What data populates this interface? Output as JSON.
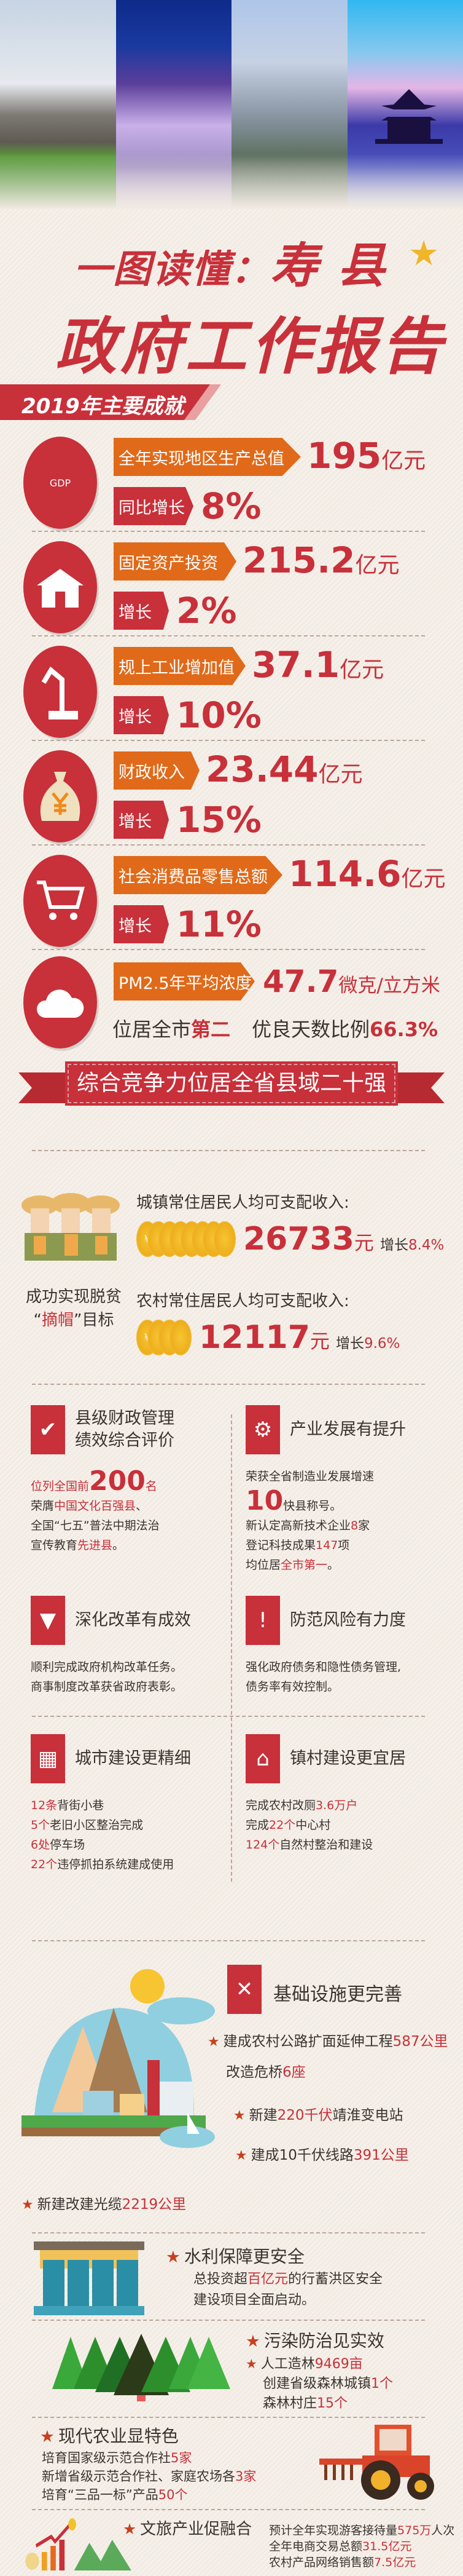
{
  "header": {
    "title_prefix": "一图读懂：",
    "title_place": "寿 县",
    "title_main": "政府工作报告"
  },
  "section1": {
    "ribbon": "2019年主要成就",
    "stats": [
      {
        "icon": "gdp-chart-icon",
        "icon_text": "GDP",
        "label": "全年实现地区生产总值",
        "value": "195",
        "unit": "亿元",
        "growth_label": "同比增长",
        "growth": "8%"
      },
      {
        "icon": "house-icon",
        "label": "固定资产投资",
        "value": "215.2",
        "unit": "亿元",
        "growth_label": "增长",
        "growth": "2%"
      },
      {
        "icon": "robot-arm-icon",
        "label": "规上工业增加值",
        "value": "37.1",
        "unit": "亿元",
        "growth_label": "增长",
        "growth": "10%"
      },
      {
        "icon": "money-bag-icon",
        "label": "财政收入",
        "value": "23.44",
        "unit": "亿元",
        "growth_label": "增长",
        "growth": "15%"
      },
      {
        "icon": "shopping-cart-icon",
        "label": "社会消费品零售总额",
        "value": "114.6",
        "unit": "亿元",
        "growth_label": "增长",
        "growth": "11%"
      }
    ],
    "pm25": {
      "label": "PM2.5年平均浓度",
      "value": "47.7",
      "unit": "微克/立方米",
      "rank_prefix": "位居全市",
      "rank": "第二",
      "good_days_label": "优良天数比例",
      "good_days": "66.3%"
    }
  },
  "section2": {
    "ribbon": "综合竞争力位居全省县域二十强",
    "poverty": [
      {
        "t": "成功实现脱贫"
      },
      {
        "t": "\n“"
      },
      {
        "t": "摘帽",
        "hl": true
      },
      {
        "t": "”目标"
      }
    ],
    "urban": {
      "label": "城镇常住居民人均可支配收入:",
      "value": "26733",
      "unit": "元",
      "growth_label": "增长",
      "growth": "8.4%"
    },
    "rural": {
      "label": "农村常住居民人均可支配收入:",
      "value": "12117",
      "unit": "元",
      "growth_label": "增长",
      "growth": "9.6%"
    },
    "coin_symbol": "¥"
  },
  "cards": [
    {
      "icon": "money-bag-check-icon",
      "title": "县级财政管理\n绩效综合评价",
      "lines": [
        [
          {
            "t": "位列全国前",
            "hl": true
          },
          {
            "t": "200",
            "hl": true,
            "big": true
          },
          {
            "t": "名",
            "hl": true
          }
        ],
        [
          {
            "t": "荣膺"
          },
          {
            "t": "中国文化百强县",
            "hl": true
          },
          {
            "t": "、"
          }
        ],
        [
          {
            "t": "全国“七五”普法中期法治"
          }
        ],
        [
          {
            "t": "宣传教育"
          },
          {
            "t": "先进县",
            "hl": true
          },
          {
            "t": "。"
          }
        ]
      ]
    },
    {
      "icon": "gear-icon",
      "title": "产业发展有提升",
      "lines": [
        [
          {
            "t": "荣获全省制造业发展增速"
          }
        ],
        [
          {
            "t": "10",
            "hl": true,
            "big": true
          },
          {
            "t": "快县称号。"
          }
        ],
        [
          {
            "t": "新认定高新技术企业"
          },
          {
            "t": "8",
            "hl": true
          },
          {
            "t": "家"
          }
        ],
        [
          {
            "t": "登记科技成果"
          },
          {
            "t": "147",
            "hl": true
          },
          {
            "t": "项"
          }
        ],
        [
          {
            "t": "均位居"
          },
          {
            "t": "全市第一",
            "hl": true
          },
          {
            "t": "。"
          }
        ]
      ]
    },
    {
      "icon": "stamp-icon",
      "title": "深化改革有成效",
      "lines": [
        [
          {
            "t": "顺利完成政府机构改革任务。"
          }
        ],
        [
          {
            "t": "商事制度改革获省政府表彰。"
          }
        ]
      ]
    },
    {
      "icon": "warning-icon",
      "title": "防范风险有力度",
      "lines": [
        [
          {
            "t": "强化政府债务和隐性债务管理,"
          }
        ],
        [
          {
            "t": "债务率有效控制。"
          }
        ]
      ]
    },
    {
      "icon": "buildings-icon",
      "title": "城市建设更精细",
      "lines": [
        [
          {
            "t": "12条",
            "hl": true
          },
          {
            "t": "背街小巷"
          }
        ],
        [
          {
            "t": "5个",
            "hl": true
          },
          {
            "t": "老旧小区整治完成"
          }
        ],
        [
          {
            "t": "6处",
            "hl": true
          },
          {
            "t": "停车场"
          }
        ],
        [
          {
            "t": "22个",
            "hl": true
          },
          {
            "t": "违停抓拍系统建成使用"
          }
        ]
      ]
    },
    {
      "icon": "village-house-icon",
      "title": "镇村建设更宜居",
      "lines": [
        [
          {
            "t": "完成农村改厕"
          },
          {
            "t": "3.6万户",
            "hl": true
          }
        ],
        [
          {
            "t": "完成"
          },
          {
            "t": "22个",
            "hl": true
          },
          {
            "t": "中心村"
          }
        ],
        [
          {
            "t": "124个",
            "hl": true
          },
          {
            "t": "自然村整治和建设"
          }
        ]
      ]
    }
  ],
  "infrastructure": {
    "title": "基础设施更完善",
    "items": [
      [
        {
          "t": "建成农村公路扩面延伸工程"
        },
        {
          "t": "587公里",
          "hl": true
        }
      ],
      [
        {
          "t": "改造危桥"
        },
        {
          "t": "6座",
          "hl": true
        }
      ],
      [
        {
          "t": "新建"
        },
        {
          "t": "220千伏",
          "hl": true
        },
        {
          "t": "靖淮变电站"
        }
      ],
      [
        {
          "t": "建成10千伏线路"
        },
        {
          "t": "391公里",
          "hl": true
        }
      ],
      [
        {
          "t": "新建改建光缆"
        },
        {
          "t": "2219公里",
          "hl": true
        }
      ]
    ]
  },
  "water": {
    "title": "水利保障更安全",
    "lines": [
      [
        {
          "t": "总投资超"
        },
        {
          "t": "百亿元",
          "hl": true
        },
        {
          "t": "的行蓄洪区安全"
        }
      ],
      [
        {
          "t": "建设项目全面启动。"
        }
      ]
    ]
  },
  "pollution": {
    "title": "污染防治见实效",
    "lines": [
      [
        {
          "t": "人工造林"
        },
        {
          "t": "9469亩",
          "hl": true
        }
      ],
      [
        {
          "t": "创建省级森林城镇"
        },
        {
          "t": "1个",
          "hl": true
        }
      ],
      [
        {
          "t": "森林村庄"
        },
        {
          "t": "15个",
          "hl": true
        }
      ]
    ]
  },
  "agriculture": {
    "title": "现代农业显特色",
    "lines": [
      [
        {
          "t": "培育国家级示范合作社"
        },
        {
          "t": "5家",
          "hl": true
        }
      ],
      [
        {
          "t": "新增省级示范合作社、家庭农场各"
        },
        {
          "t": "3家",
          "hl": true
        }
      ],
      [
        {
          "t": "培育“三品一标”产品"
        },
        {
          "t": "50个",
          "hl": true
        }
      ]
    ]
  },
  "tourism": {
    "title": "文旅产业促融合",
    "lines": [
      [
        {
          "t": "预计全年实现游客接待量"
        },
        {
          "t": "575万",
          "hl": true
        },
        {
          "t": "人次"
        }
      ],
      [
        {
          "t": "全年电商交易总额"
        },
        {
          "t": "31.5亿元",
          "hl": true
        }
      ],
      [
        {
          "t": "农村产品网络销售额"
        },
        {
          "t": "7.5亿元",
          "hl": true
        }
      ]
    ]
  },
  "colors": {
    "red": "#c8303a",
    "orange": "#e06a1a",
    "background": "#f2ebe3",
    "gold": "#f0b52a"
  }
}
